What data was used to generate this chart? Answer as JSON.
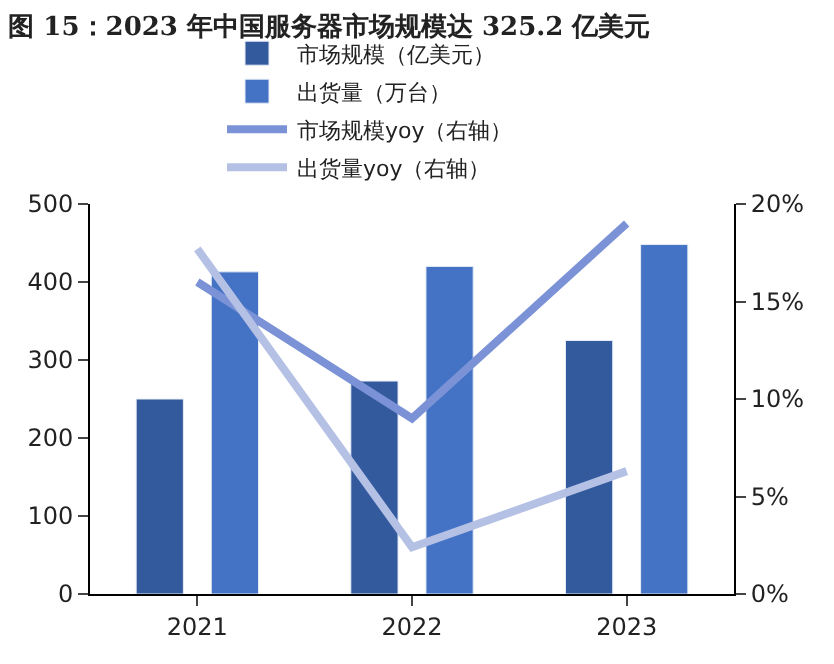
{
  "chart_data": {
    "type": "bar",
    "title": "图 15：2023 年中国服务器市场规模达 325.2 亿美元",
    "categories": [
      "2021",
      "2022",
      "2023"
    ],
    "series": [
      {
        "name": "市场规模（亿美元）",
        "color": "#345a9e",
        "values": [
          250,
          273,
          325
        ]
      },
      {
        "name": "出货量（万台）",
        "color": "#4472c4",
        "values": [
          413,
          420,
          448
        ]
      },
      {
        "name": "市场规模yoy（右轴）",
        "type": "line",
        "axis": "y2",
        "color": "#7b93d6",
        "values": [
          16,
          9,
          19
        ]
      },
      {
        "name": "出货量yoy（右轴）",
        "type": "line",
        "axis": "y2",
        "color": "#b4c0e4",
        "values": [
          17.7,
          2.4,
          6.3
        ]
      }
    ],
    "ylim": [
      0,
      500
    ],
    "yticks": [
      0,
      100,
      200,
      300,
      400,
      500
    ],
    "y2lim": [
      0,
      20
    ],
    "y2ticks": [
      {
        "value": 0,
        "label": "0%"
      },
      {
        "value": 5,
        "label": "5%"
      },
      {
        "value": 10,
        "label": "10%"
      },
      {
        "value": 15,
        "label": "15%"
      },
      {
        "value": 20,
        "label": "20%"
      }
    ],
    "legend": "top"
  }
}
